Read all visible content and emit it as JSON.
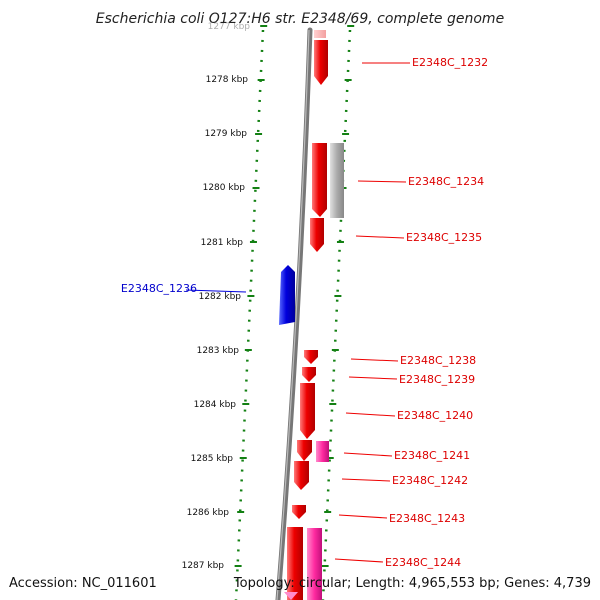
{
  "title": "Escherichia coli O127:H6 str. E2348/69, complete genome",
  "accession": "Accession: NC_011601",
  "topology": "Topology: circular; Length: 4,965,553 bp; Genes: 4,739",
  "ruler_labels": [
    "1277 kbp",
    "1278 kbp",
    "1279 kbp",
    "1280 kbp",
    "1281 kbp",
    "1282 kbp",
    "1283 kbp",
    "1284 kbp",
    "1285 kbp",
    "1286 kbp",
    "1287 kbp"
  ],
  "colors": {
    "forward": "#ee0000",
    "reverse": "#0000dd",
    "pseudo": "#aaaaaa",
    "pink": "#ff2aa0",
    "axis": "#777777",
    "ticks": "#138013"
  },
  "genes": [
    {
      "label": "E2348C_1232",
      "strand": "forward",
      "color": "red"
    },
    {
      "label": "E2348C_1234",
      "strand": "forward",
      "color": "red"
    },
    {
      "label": "E2348C_1235",
      "strand": "forward",
      "color": "red"
    },
    {
      "label": "E2348C_1236",
      "strand": "reverse",
      "color": "blue"
    },
    {
      "label": "E2348C_1238",
      "strand": "forward",
      "color": "red"
    },
    {
      "label": "E2348C_1239",
      "strand": "forward",
      "color": "red"
    },
    {
      "label": "E2348C_1240",
      "strand": "forward",
      "color": "red"
    },
    {
      "label": "E2348C_1241",
      "strand": "forward",
      "color": "red"
    },
    {
      "label": "E2348C_1242",
      "strand": "forward",
      "color": "red"
    },
    {
      "label": "E2348C_1243",
      "strand": "forward",
      "color": "red"
    },
    {
      "label": "E2348C_1244",
      "strand": "forward",
      "color": "red"
    }
  ]
}
